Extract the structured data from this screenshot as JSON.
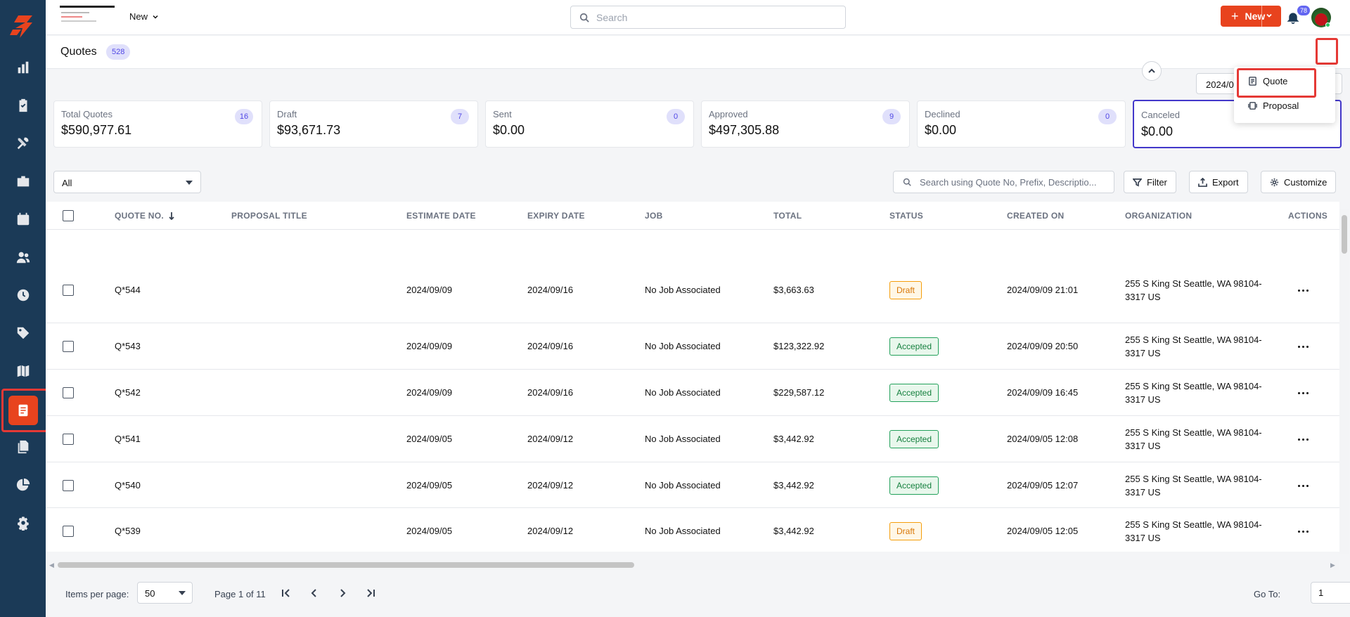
{
  "topbar": {
    "new_label": "New",
    "search_placeholder": "Search",
    "notifications_count": "78"
  },
  "page": {
    "title": "Quotes",
    "count": "528",
    "new_button_label": "New",
    "date_range": "2024/0"
  },
  "new_menu": {
    "items": [
      {
        "label": "Quote",
        "icon": "quote-icon"
      },
      {
        "label": "Proposal",
        "icon": "proposal-icon"
      }
    ]
  },
  "cards": [
    {
      "label": "Total Quotes",
      "value": "$590,977.61",
      "count": "16"
    },
    {
      "label": "Draft",
      "value": "$93,671.73",
      "count": "7"
    },
    {
      "label": "Sent",
      "value": "$0.00",
      "count": "0"
    },
    {
      "label": "Approved",
      "value": "$497,305.88",
      "count": "9"
    },
    {
      "label": "Declined",
      "value": "$0.00",
      "count": "0"
    },
    {
      "label": "Canceled",
      "value": "$0.00",
      "count": ""
    }
  ],
  "filters": {
    "status_value": "All",
    "search_placeholder": "Search using Quote No, Prefix, Descriptio...",
    "filter_label": "Filter",
    "export_label": "Export",
    "customize_label": "Customize"
  },
  "table": {
    "headers": [
      "QUOTE NO.",
      "PROPOSAL TITLE",
      "ESTIMATE DATE",
      "EXPIRY DATE",
      "JOB",
      "TOTAL",
      "STATUS",
      "CREATED ON",
      "ORGANIZATION",
      "ACTIONS"
    ],
    "rows": [
      {
        "quote_no": "Q*544",
        "proposal_title": "",
        "estimate_date": "2024/09/09",
        "expiry_date": "2024/09/16",
        "job": "No Job Associated",
        "total": "$3,663.63",
        "status": "Draft",
        "created_on": "2024/09/09 21:01",
        "organization": "255 S King St Seattle, WA 98104-3317 US"
      },
      {
        "quote_no": "Q*543",
        "proposal_title": "",
        "estimate_date": "2024/09/09",
        "expiry_date": "2024/09/16",
        "job": "No Job Associated",
        "total": "$123,322.92",
        "status": "Accepted",
        "created_on": "2024/09/09 20:50",
        "organization": "255 S King St Seattle, WA 98104-3317 US"
      },
      {
        "quote_no": "Q*542",
        "proposal_title": "",
        "estimate_date": "2024/09/09",
        "expiry_date": "2024/09/16",
        "job": "No Job Associated",
        "total": "$229,587.12",
        "status": "Accepted",
        "created_on": "2024/09/09 16:45",
        "organization": "255 S King St Seattle, WA 98104-3317 US"
      },
      {
        "quote_no": "Q*541",
        "proposal_title": "",
        "estimate_date": "2024/09/05",
        "expiry_date": "2024/09/12",
        "job": "No Job Associated",
        "total": "$3,442.92",
        "status": "Accepted",
        "created_on": "2024/09/05 12:08",
        "organization": "255 S King St Seattle, WA 98104-3317 US"
      },
      {
        "quote_no": "Q*540",
        "proposal_title": "",
        "estimate_date": "2024/09/05",
        "expiry_date": "2024/09/12",
        "job": "No Job Associated",
        "total": "$3,442.92",
        "status": "Accepted",
        "created_on": "2024/09/05 12:07",
        "organization": "255 S King St Seattle, WA 98104-3317 US"
      },
      {
        "quote_no": "Q*539",
        "proposal_title": "",
        "estimate_date": "2024/09/05",
        "expiry_date": "2024/09/12",
        "job": "No Job Associated",
        "total": "$3,442.92",
        "status": "Draft",
        "created_on": "2024/09/05 12:05",
        "organization": "255 S King St Seattle, WA 98104-3317 US"
      }
    ]
  },
  "pagination": {
    "items_per_page_label": "Items per page:",
    "items_per_page_value": "50",
    "page_text": "Page 1 of 11",
    "goto_label": "Go To:",
    "goto_value": "1"
  },
  "colors": {
    "sidebar": "#1b3a57",
    "accent": "#e8431e",
    "count_badge": "#e0e0fb",
    "selected_card_border": "#4338ca"
  },
  "sidebar": {
    "items": [
      "dashboard-icon",
      "clipboard-icon",
      "tools-icon",
      "briefcase-icon",
      "calendar-icon",
      "users-icon",
      "clock-icon",
      "tag-icon",
      "map-icon",
      "quotes-icon",
      "documents-icon",
      "pie-chart-icon",
      "settings-icon"
    ],
    "active": "quotes-icon"
  }
}
